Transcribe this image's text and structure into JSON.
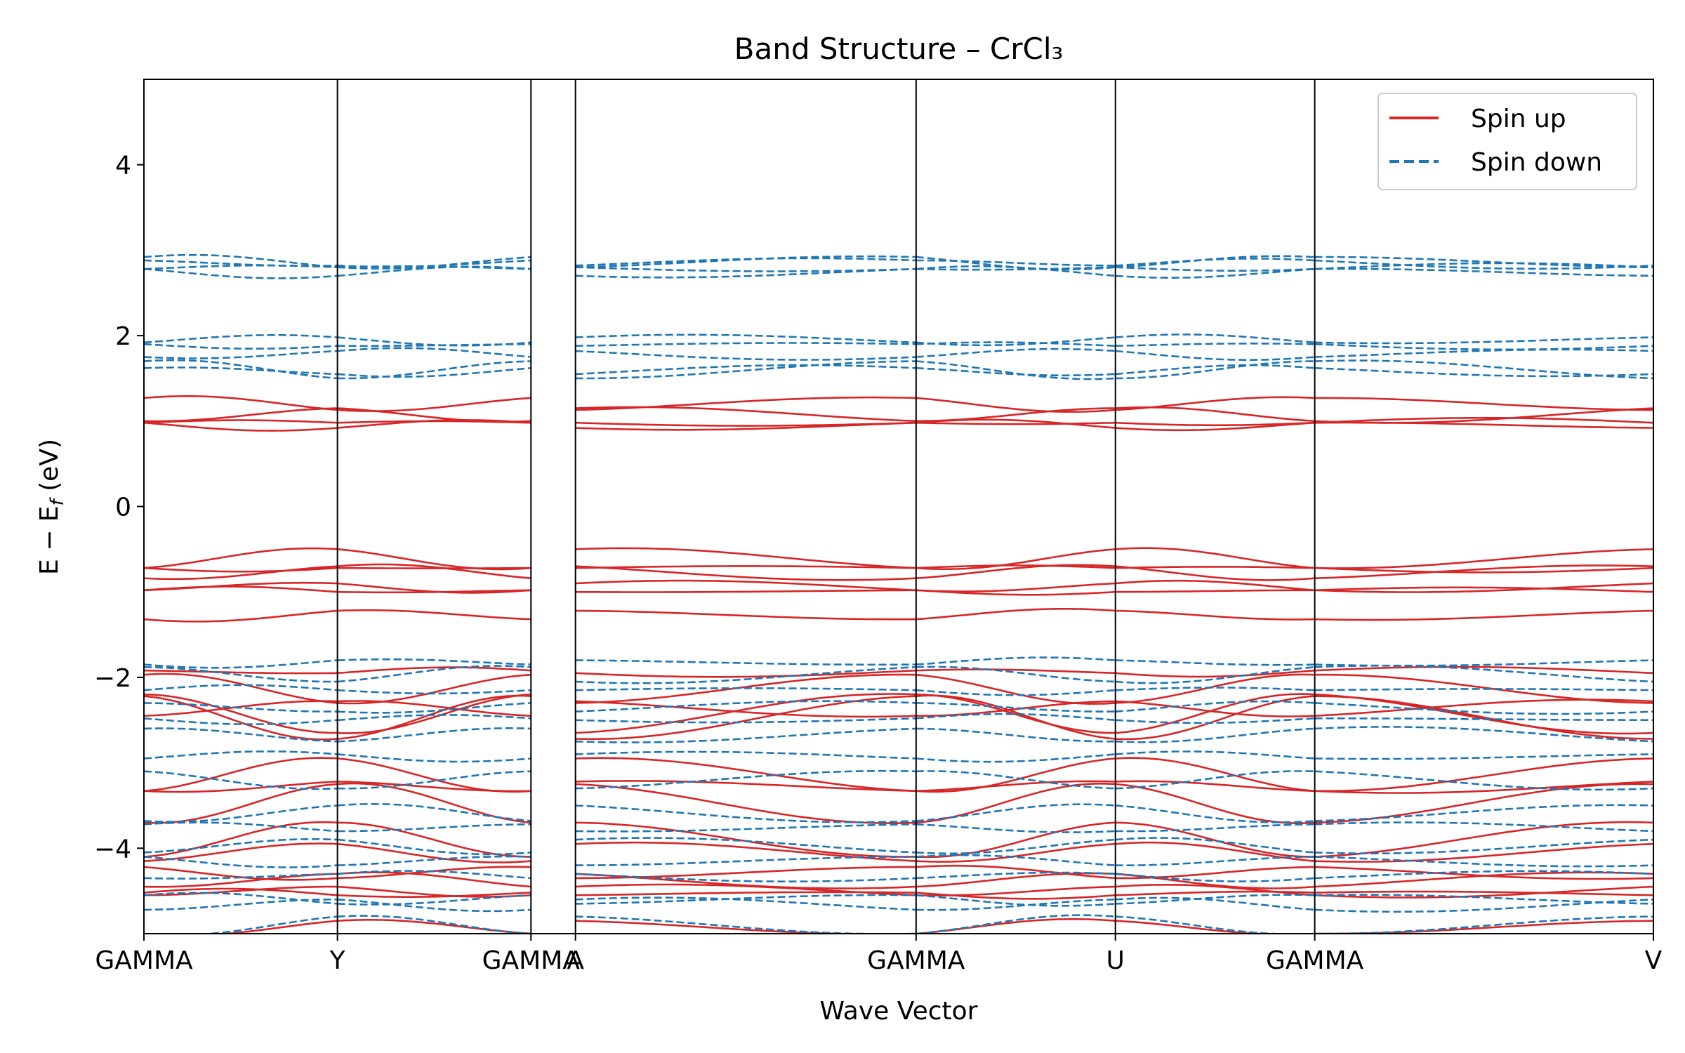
{
  "chart_data": {
    "type": "line",
    "title": "Band Structure – CrCl₃",
    "xlabel": "Wave Vector",
    "ylabel": "E − E_f (eV)",
    "ylabel_main": "E − E",
    "ylabel_sub": "f",
    "ylabel_unit": " (eV)",
    "ylim": [
      -5,
      5
    ],
    "yticks": [
      -4,
      -2,
      0,
      2,
      4
    ],
    "ytick_labels": [
      "−4",
      "−2",
      "0",
      "2",
      "4"
    ],
    "xlim": [
      0,
      7.8
    ],
    "kpoints": [
      {
        "label": "GAMMA",
        "x": 0.0
      },
      {
        "label": "Y",
        "x": 1.0
      },
      {
        "label": "GAMMA",
        "x": 2.0
      },
      {
        "label": "A",
        "x": 2.23
      },
      {
        "label": "GAMMA",
        "x": 3.99
      },
      {
        "label": "U",
        "x": 5.02
      },
      {
        "label": "GAMMA",
        "x": 6.05
      },
      {
        "label": "V",
        "x": 7.8
      }
    ],
    "breaks": [
      2.0,
      2.23
    ],
    "grid": false,
    "legend": {
      "position": "top-right"
    },
    "series": [
      {
        "name": "Spin up",
        "color": "#d62728",
        "dash": "solid",
        "bands": [
          {
            "at_gamma": 1.27,
            "at_zone": 1.13
          },
          {
            "at_gamma": 1.0,
            "at_zone": 1.15
          },
          {
            "at_gamma": 0.98,
            "at_zone": 0.92
          },
          {
            "at_gamma": 0.98,
            "at_zone": 0.98
          },
          {
            "at_gamma": -0.72,
            "at_zone": -0.5
          },
          {
            "at_gamma": -0.72,
            "at_zone": -0.72
          },
          {
            "at_gamma": -0.84,
            "at_zone": -0.7
          },
          {
            "at_gamma": -0.98,
            "at_zone": -1.0
          },
          {
            "at_gamma": -0.98,
            "at_zone": -0.9
          },
          {
            "at_gamma": -1.32,
            "at_zone": -1.22
          },
          {
            "at_gamma": -1.92,
            "at_zone": -1.95
          },
          {
            "at_gamma": -1.97,
            "at_zone": -2.3
          },
          {
            "at_gamma": -2.2,
            "at_zone": -2.65
          },
          {
            "at_gamma": -2.22,
            "at_zone": -2.72
          },
          {
            "at_gamma": -2.45,
            "at_zone": -2.28
          },
          {
            "at_gamma": -3.33,
            "at_zone": -2.95
          },
          {
            "at_gamma": -3.33,
            "at_zone": -3.22
          },
          {
            "at_gamma": -3.7,
            "at_zone": -3.25
          },
          {
            "at_gamma": -4.1,
            "at_zone": -3.7
          },
          {
            "at_gamma": -4.15,
            "at_zone": -3.95
          },
          {
            "at_gamma": -4.22,
            "at_zone": -4.35
          },
          {
            "at_gamma": -4.45,
            "at_zone": -4.3
          },
          {
            "at_gamma": -4.52,
            "at_zone": -4.55
          },
          {
            "at_gamma": -4.55,
            "at_zone": -4.45
          },
          {
            "at_gamma": -5.0,
            "at_zone": -4.85
          }
        ]
      },
      {
        "name": "Spin down",
        "color": "#1f77b4",
        "dash": "dashed",
        "bands": [
          {
            "at_gamma": 2.92,
            "at_zone": 2.8
          },
          {
            "at_gamma": 2.88,
            "at_zone": 2.82
          },
          {
            "at_gamma": 2.78,
            "at_zone": 2.7
          },
          {
            "at_gamma": 2.78,
            "at_zone": 2.8
          },
          {
            "at_gamma": 1.92,
            "at_zone": 1.98
          },
          {
            "at_gamma": 1.9,
            "at_zone": 1.88
          },
          {
            "at_gamma": 1.75,
            "at_zone": 1.82
          },
          {
            "at_gamma": 1.7,
            "at_zone": 1.5
          },
          {
            "at_gamma": 1.62,
            "at_zone": 1.55
          },
          {
            "at_gamma": -1.85,
            "at_zone": -1.8
          },
          {
            "at_gamma": -1.88,
            "at_zone": -2.05
          },
          {
            "at_gamma": -2.15,
            "at_zone": -2.15
          },
          {
            "at_gamma": -2.3,
            "at_zone": -2.4
          },
          {
            "at_gamma": -2.48,
            "at_zone": -2.5
          },
          {
            "at_gamma": -2.6,
            "at_zone": -2.75
          },
          {
            "at_gamma": -2.95,
            "at_zone": -2.9
          },
          {
            "at_gamma": -3.1,
            "at_zone": -3.3
          },
          {
            "at_gamma": -3.68,
            "at_zone": -3.5
          },
          {
            "at_gamma": -3.72,
            "at_zone": -3.8
          },
          {
            "at_gamma": -4.05,
            "at_zone": -3.9
          },
          {
            "at_gamma": -4.1,
            "at_zone": -4.2
          },
          {
            "at_gamma": -4.35,
            "at_zone": -4.3
          },
          {
            "at_gamma": -4.55,
            "at_zone": -4.65
          },
          {
            "at_gamma": -4.72,
            "at_zone": -4.6
          },
          {
            "at_gamma": -5.0,
            "at_zone": -4.8
          }
        ]
      }
    ]
  }
}
